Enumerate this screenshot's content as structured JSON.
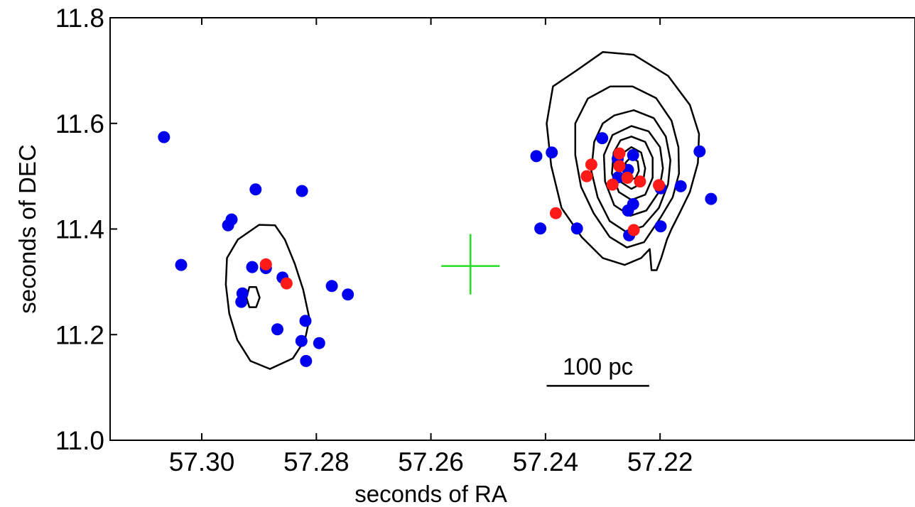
{
  "chart_data": {
    "type": "scatter",
    "title": "",
    "xlabel": "seconds of RA",
    "ylabel": "seconds of DEC",
    "x_reversed": true,
    "xlim": [
      57.316,
      57.1755
    ],
    "ylim": [
      11.0,
      11.8
    ],
    "xticks": [
      57.3,
      57.28,
      57.26,
      57.24,
      57.22
    ],
    "xtick_labels": [
      "57.30",
      "57.28",
      "57.26",
      "57.24",
      "57.22"
    ],
    "yticks": [
      11.0,
      11.2,
      11.4,
      11.6,
      11.8
    ],
    "ytick_labels": [
      "11.0",
      "11.2",
      "11.4",
      "11.6",
      "11.8"
    ],
    "grid": false,
    "legend": "none",
    "colors": {
      "blue": "#0000ee",
      "red": "#ff1a1a",
      "cross": "#22dd22",
      "contour": "#000000"
    },
    "series": [
      {
        "color": "#0000ee",
        "points": [
          [
            57.3066,
            11.574
          ],
          [
            57.3036,
            11.332
          ],
          [
            57.2954,
            11.407
          ],
          [
            57.2948,
            11.418
          ],
          [
            57.2906,
            11.475
          ],
          [
            57.2929,
            11.278
          ],
          [
            57.2931,
            11.262
          ],
          [
            57.2912,
            11.328
          ],
          [
            57.2888,
            11.326
          ],
          [
            57.2868,
            11.21
          ],
          [
            57.2859,
            11.308
          ],
          [
            57.2825,
            11.472
          ],
          [
            57.2826,
            11.188
          ],
          [
            57.2819,
            11.226
          ],
          [
            57.2818,
            11.15
          ],
          [
            57.2795,
            11.184
          ],
          [
            57.2773,
            11.292
          ],
          [
            57.2745,
            11.276
          ],
          [
            57.2416,
            11.538
          ],
          [
            57.2389,
            11.545
          ],
          [
            57.2409,
            11.401
          ],
          [
            57.2345,
            11.401
          ],
          [
            57.2301,
            11.572
          ],
          [
            57.2274,
            11.533
          ],
          [
            57.2273,
            11.498
          ],
          [
            57.2256,
            11.512
          ],
          [
            57.2247,
            11.54
          ],
          [
            57.2256,
            11.435
          ],
          [
            57.2247,
            11.447
          ],
          [
            57.2254,
            11.388
          ],
          [
            57.2199,
            11.405
          ],
          [
            57.2199,
            11.477
          ],
          [
            57.2164,
            11.481
          ],
          [
            57.2131,
            11.547
          ],
          [
            57.2111,
            11.457
          ]
        ]
      },
      {
        "color": "#ff1a1a",
        "points": [
          [
            57.2888,
            11.333
          ],
          [
            57.2852,
            11.297
          ],
          [
            57.2382,
            11.43
          ],
          [
            57.2328,
            11.5
          ],
          [
            57.232,
            11.522
          ],
          [
            57.2283,
            11.484
          ],
          [
            57.2271,
            11.543
          ],
          [
            57.2271,
            11.519
          ],
          [
            57.2257,
            11.497
          ],
          [
            57.2235,
            11.49
          ],
          [
            57.2246,
            11.398
          ],
          [
            57.2202,
            11.483
          ]
        ]
      }
    ],
    "cross_marker": {
      "x": 57.2531,
      "y": 11.33,
      "color": "#22dd22"
    },
    "scale_bar": {
      "label": "100 pc",
      "x_start": 57.2398,
      "x_end": 57.2219,
      "y": 11.103
    },
    "contours": [
      {
        "group": "left",
        "closed": true,
        "points": [
          [
            57.2937,
            11.38
          ],
          [
            57.29,
            11.408
          ],
          [
            57.2872,
            11.407
          ],
          [
            57.2855,
            11.38
          ],
          [
            57.2838,
            11.335
          ],
          [
            57.2823,
            11.285
          ],
          [
            57.2812,
            11.23
          ],
          [
            57.282,
            11.19
          ],
          [
            57.2841,
            11.155
          ],
          [
            57.2881,
            11.135
          ],
          [
            57.2915,
            11.15
          ],
          [
            57.2938,
            11.19
          ],
          [
            57.2952,
            11.24
          ],
          [
            57.2958,
            11.295
          ],
          [
            57.2956,
            11.345
          ]
        ]
      },
      {
        "group": "left",
        "closed": true,
        "points": [
          [
            57.2917,
            11.29
          ],
          [
            57.2905,
            11.29
          ],
          [
            57.2899,
            11.27
          ],
          [
            57.2905,
            11.252
          ],
          [
            57.2917,
            11.252
          ],
          [
            57.2922,
            11.27
          ]
        ]
      },
      {
        "group": "right",
        "closed": true,
        "points": [
          [
            57.2346,
            11.7
          ],
          [
            57.23,
            11.735
          ],
          [
            57.2246,
            11.73
          ],
          [
            57.2186,
            11.69
          ],
          [
            57.2148,
            11.635
          ],
          [
            57.2132,
            11.58
          ],
          [
            57.2134,
            11.525
          ],
          [
            57.2148,
            11.47
          ],
          [
            57.2166,
            11.43
          ],
          [
            57.218,
            11.4
          ],
          [
            57.2188,
            11.38
          ],
          [
            57.2198,
            11.345
          ],
          [
            57.2206,
            11.322
          ],
          [
            57.2215,
            11.322
          ],
          [
            57.2218,
            11.362
          ],
          [
            57.2233,
            11.345
          ],
          [
            57.2262,
            11.332
          ],
          [
            57.23,
            11.345
          ],
          [
            57.2337,
            11.385
          ],
          [
            57.2372,
            11.44
          ],
          [
            57.239,
            11.52
          ],
          [
            57.2398,
            11.6
          ],
          [
            57.2387,
            11.67
          ]
        ]
      },
      {
        "group": "right",
        "closed": true,
        "points": [
          [
            57.2326,
            11.647
          ],
          [
            57.2287,
            11.67
          ],
          [
            57.2248,
            11.67
          ],
          [
            57.2207,
            11.648
          ],
          [
            57.218,
            11.605
          ],
          [
            57.2168,
            11.555
          ],
          [
            57.2167,
            11.505
          ],
          [
            57.2178,
            11.46
          ],
          [
            57.22,
            11.42
          ],
          [
            57.2228,
            11.375
          ],
          [
            57.2258,
            11.365
          ],
          [
            57.2288,
            11.385
          ],
          [
            57.2316,
            11.43
          ],
          [
            57.2338,
            11.48
          ],
          [
            57.2348,
            11.54
          ],
          [
            57.2348,
            11.6
          ]
        ]
      },
      {
        "group": "right",
        "closed": true,
        "points": [
          [
            57.228,
            11.615
          ],
          [
            57.2246,
            11.625
          ],
          [
            57.2211,
            11.61
          ],
          [
            57.219,
            11.575
          ],
          [
            57.2182,
            11.53
          ],
          [
            57.2186,
            11.485
          ],
          [
            57.2202,
            11.44
          ],
          [
            57.223,
            11.405
          ],
          [
            57.226,
            11.395
          ],
          [
            57.2288,
            11.415
          ],
          [
            57.2309,
            11.46
          ],
          [
            57.232,
            11.51
          ],
          [
            57.2315,
            11.565
          ],
          [
            57.23,
            11.6
          ]
        ]
      },
      {
        "group": "right",
        "closed": true,
        "points": [
          [
            57.225,
            11.595
          ],
          [
            57.222,
            11.585
          ],
          [
            57.22,
            11.555
          ],
          [
            57.2195,
            11.515
          ],
          [
            57.2202,
            11.47
          ],
          [
            57.2224,
            11.435
          ],
          [
            57.2252,
            11.425
          ],
          [
            57.228,
            11.445
          ],
          [
            57.2296,
            11.49
          ],
          [
            57.2298,
            11.54
          ],
          [
            57.2283,
            11.578
          ]
        ]
      },
      {
        "group": "right",
        "closed": true,
        "points": [
          [
            57.225,
            11.575
          ],
          [
            57.2226,
            11.565
          ],
          [
            57.2213,
            11.535
          ],
          [
            57.2213,
            11.497
          ],
          [
            57.2226,
            11.465
          ],
          [
            57.225,
            11.455
          ],
          [
            57.2272,
            11.47
          ],
          [
            57.2284,
            11.505
          ],
          [
            57.2281,
            11.545
          ],
          [
            57.2269,
            11.568
          ]
        ]
      },
      {
        "group": "right",
        "closed": true,
        "points": [
          [
            57.225,
            11.555
          ],
          [
            57.2233,
            11.545
          ],
          [
            57.2226,
            11.515
          ],
          [
            57.223,
            11.488
          ],
          [
            57.225,
            11.476
          ],
          [
            57.2267,
            11.488
          ],
          [
            57.2272,
            11.515
          ],
          [
            57.2266,
            11.543
          ]
        ]
      },
      {
        "group": "right",
        "closed": true,
        "points": [
          [
            57.225,
            11.537
          ],
          [
            57.2239,
            11.528
          ],
          [
            57.2237,
            11.51
          ],
          [
            57.2243,
            11.496
          ],
          [
            57.2254,
            11.494
          ],
          [
            57.2261,
            11.508
          ],
          [
            57.226,
            11.526
          ]
        ]
      }
    ]
  }
}
